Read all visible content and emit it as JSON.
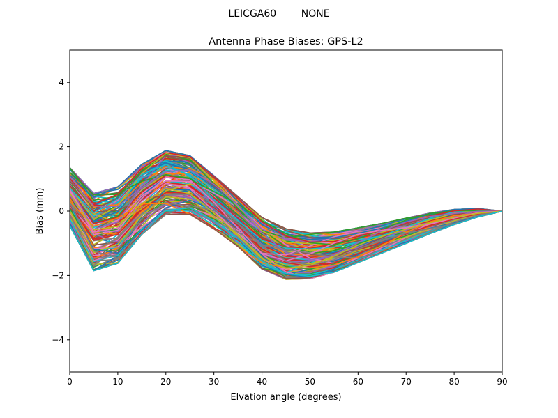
{
  "figure": {
    "suptitle": "LEICGA60        NONE"
  },
  "chart_data": {
    "type": "line",
    "title": "Antenna Phase Biases: GPS-L2",
    "xlabel": "Elvation angle (degrees)",
    "ylabel": "Bias (mm)",
    "xlim": [
      0,
      90
    ],
    "ylim": [
      -5,
      5
    ],
    "xticks": [
      0,
      10,
      20,
      30,
      40,
      50,
      60,
      70,
      80,
      90
    ],
    "yticks": [
      -4,
      -2,
      0,
      2,
      4
    ],
    "xtick_labels": [
      "0",
      "10",
      "20",
      "30",
      "40",
      "50",
      "60",
      "70",
      "80",
      "90"
    ],
    "ytick_labels": [
      "−4",
      "−2",
      "0",
      "2",
      "4"
    ],
    "grid": false,
    "legend": "none",
    "x": [
      0,
      5,
      10,
      15,
      20,
      25,
      30,
      35,
      40,
      45,
      50,
      55,
      60,
      65,
      70,
      75,
      80,
      85,
      90
    ],
    "envelope": {
      "upper": [
        1.35,
        0.55,
        0.75,
        1.45,
        1.88,
        1.72,
        1.1,
        0.45,
        -0.2,
        -0.55,
        -0.68,
        -0.65,
        -0.52,
        -0.38,
        -0.22,
        -0.06,
        0.05,
        0.08,
        0.0
      ],
      "lower": [
        -0.45,
        -1.85,
        -1.62,
        -0.72,
        -0.1,
        -0.1,
        -0.55,
        -1.1,
        -1.8,
        -2.12,
        -2.1,
        -1.9,
        -1.6,
        -1.3,
        -1.0,
        -0.7,
        -0.42,
        -0.18,
        0.0
      ]
    },
    "series_count": 180,
    "palette": [
      "#1f77b4",
      "#ff7f0e",
      "#2ca02c",
      "#d62728",
      "#9467bd",
      "#8c564b",
      "#e377c2",
      "#7f7f7f",
      "#bcbd22",
      "#17becf"
    ]
  }
}
